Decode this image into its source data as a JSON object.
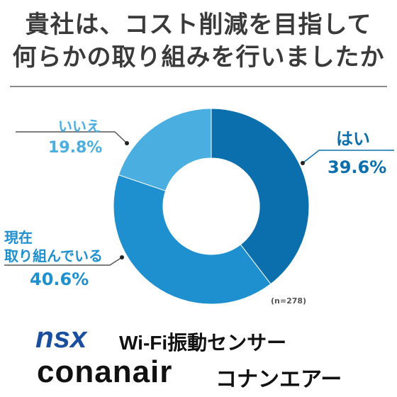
{
  "title_line1": "貴社は、コスト削減を目指して",
  "title_line2": "何らかの取り組みを行いましたか",
  "chart_data": {
    "type": "pie",
    "style": "donut",
    "slices": [
      {
        "label": "はい",
        "value": 39.6,
        "value_label": "39.6%",
        "color": "#0b6fae"
      },
      {
        "label": "現在取り組んでいる",
        "value": 40.6,
        "value_label": "40.6%",
        "color": "#1e8fcf"
      },
      {
        "label": "いいえ",
        "value": 19.8,
        "value_label": "19.8%",
        "color": "#4aaee0"
      }
    ],
    "label_lines": {
      "doing": [
        "現在",
        "取り組んでいる"
      ]
    },
    "note": "(n=278)"
  },
  "footer": {
    "logo_text": "nsx",
    "product": "Wi-Fi振動センサー",
    "brand": "conanair",
    "brand_kana": "コナンエアー"
  }
}
